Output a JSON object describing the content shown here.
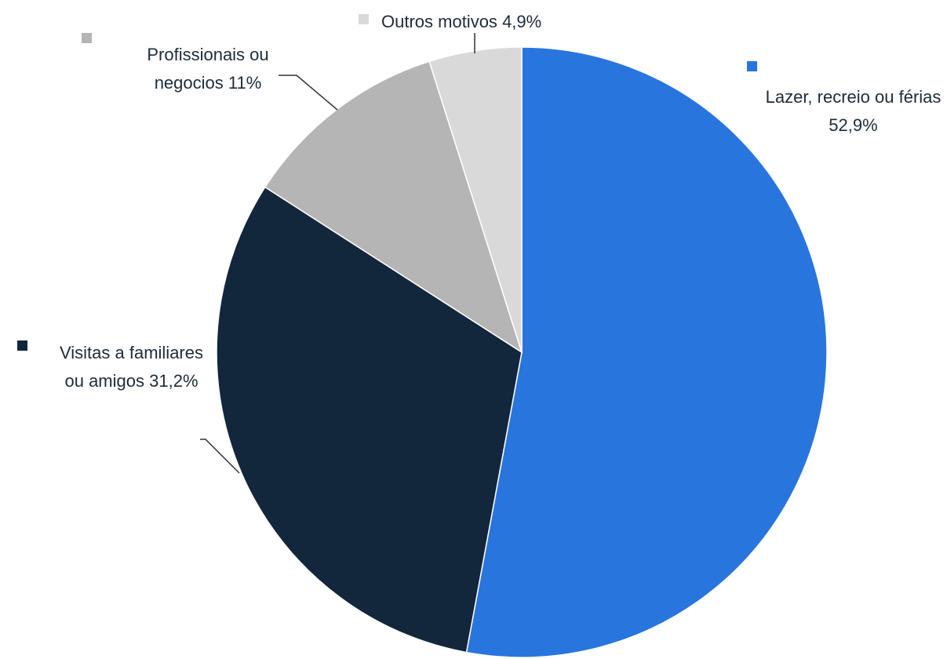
{
  "chart_data": {
    "type": "pie",
    "categories": [
      "Lazer, recreio ou férias",
      "Visitas a familiares ou amigos",
      "Profissionais ou negocios",
      "Outros motivos"
    ],
    "values": [
      52.9,
      31.2,
      11,
      4.9
    ],
    "value_labels": [
      "52,9%",
      "31,2%",
      "11%",
      "4,9%"
    ],
    "colors": [
      "#2875de",
      "#12263c",
      "#b5b5b5",
      "#d9d9d9"
    ]
  }
}
